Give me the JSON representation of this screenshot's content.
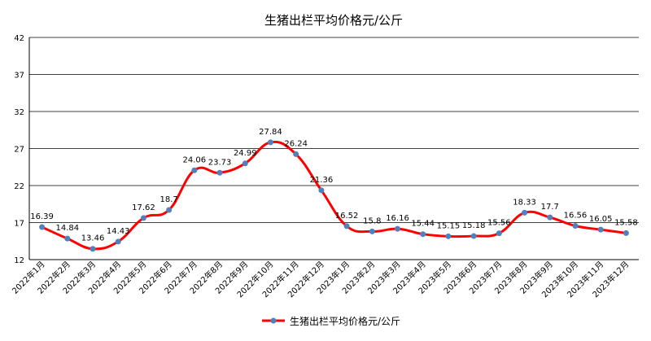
{
  "chart_data": {
    "type": "line",
    "title": "生猪出栏平均价格元/公斤",
    "categories": [
      "2022年1月",
      "2022年2月",
      "2022年3月",
      "2022年4月",
      "2022年5月",
      "2022年6月",
      "2022年7月",
      "2022年8月",
      "2022年9月",
      "2022年10月",
      "2022年11月",
      "2022年12月",
      "2023年1月",
      "2023年2月",
      "2023年3月",
      "2023年4月",
      "2023年5月",
      "2023年6月",
      "2023年7月",
      "2023年8月",
      "2023年9月",
      "2023年10月",
      "2023年11月",
      "2023年12月"
    ],
    "series": [
      {
        "name": "生猪出栏平均价格元/公斤",
        "values": [
          16.39,
          14.84,
          13.46,
          14.43,
          17.62,
          18.7,
          24.06,
          23.73,
          24.99,
          27.84,
          26.24,
          21.36,
          16.52,
          15.8,
          16.16,
          15.44,
          15.15,
          15.18,
          15.56,
          18.33,
          17.7,
          16.56,
          16.05,
          15.58
        ],
        "color": "#ff0000",
        "marker_color": "#4f81bd"
      }
    ],
    "y_ticks": [
      12,
      17,
      22,
      27,
      32,
      37,
      42
    ],
    "ylim": [
      12,
      42
    ],
    "grid": "horizontal",
    "legend": "bottom",
    "xlabel": "",
    "ylabel": ""
  }
}
